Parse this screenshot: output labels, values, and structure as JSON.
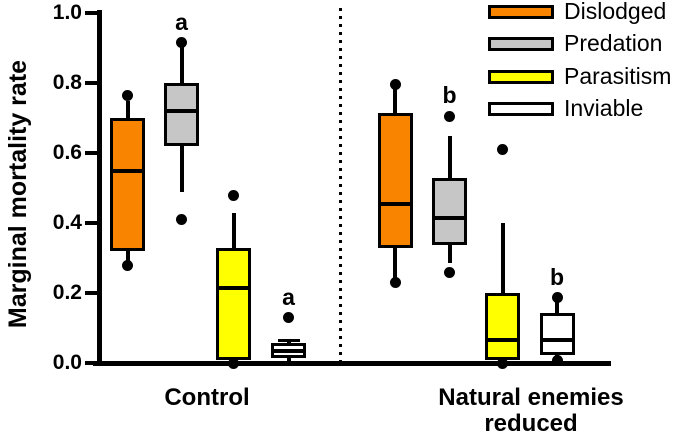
{
  "chart_data": {
    "type": "boxplot",
    "title": "",
    "ylabel": "Marginal mortality rate",
    "xlabel": "",
    "ylim": [
      0.0,
      1.0
    ],
    "yticks": [
      "0.0",
      "0.2",
      "0.4",
      "0.6",
      "0.8",
      "1.0"
    ],
    "grid": false,
    "legend_position": "top-right",
    "divider_between_groups": "vertical dotted line",
    "legend": [
      {
        "label": "Dislodged",
        "color": "#F98400"
      },
      {
        "label": "Predation",
        "color": "#C6C6C6"
      },
      {
        "label": "Parasitism",
        "color": "#FFFF00"
      },
      {
        "label": "Inviable",
        "color": "#FFFFFF"
      }
    ],
    "groups": [
      {
        "label": "Control",
        "label_lines": [
          "Control"
        ],
        "boxes": [
          {
            "series": "Dislodged",
            "q1": 0.32,
            "median": 0.55,
            "q3": 0.7,
            "whisker_top": 0.75,
            "whisker_bottom": 0.285,
            "points": [
              0.765,
              0.28
            ],
            "sig": null
          },
          {
            "series": "Predation",
            "q1": 0.62,
            "median": 0.72,
            "q3": 0.8,
            "whisker_top": 0.905,
            "whisker_bottom": 0.49,
            "points": [
              0.915,
              0.41
            ],
            "sig": "a"
          },
          {
            "series": "Parasitism",
            "q1": 0.01,
            "median": 0.215,
            "q3": 0.33,
            "whisker_top": 0.43,
            "whisker_bottom": 0.01,
            "points": [
              0.48,
              0.0
            ],
            "sig": null
          },
          {
            "series": "Inviable",
            "q1": 0.015,
            "median": 0.035,
            "q3": 0.056,
            "whisker_top": 0.066,
            "whisker_bottom": 0.0,
            "points": [
              0.13
            ],
            "sig": "a",
            "cap_top": true
          }
        ]
      },
      {
        "label": "Natural enemies reduced",
        "label_lines": [
          "Natural enemies",
          "reduced"
        ],
        "boxes": [
          {
            "series": "Dislodged",
            "q1": 0.33,
            "median": 0.455,
            "q3": 0.715,
            "whisker_top": 0.785,
            "whisker_bottom": 0.243,
            "points": [
              0.795,
              0.23
            ],
            "sig": null
          },
          {
            "series": "Predation",
            "q1": 0.337,
            "median": 0.415,
            "q3": 0.53,
            "whisker_top": 0.65,
            "whisker_bottom": 0.285,
            "points": [
              0.705,
              0.26
            ],
            "sig": "b"
          },
          {
            "series": "Parasitism",
            "q1": 0.01,
            "median": 0.065,
            "q3": 0.2,
            "whisker_top": 0.4,
            "whisker_bottom": 0.01,
            "points": [
              0.61,
              0.0
            ],
            "sig": null
          },
          {
            "series": "Inviable",
            "q1": 0.023,
            "median": 0.065,
            "q3": 0.143,
            "whisker_top": 0.186,
            "whisker_bottom": 0.007,
            "points": [
              0.186,
              0.007
            ],
            "sig": "b"
          }
        ]
      }
    ]
  }
}
